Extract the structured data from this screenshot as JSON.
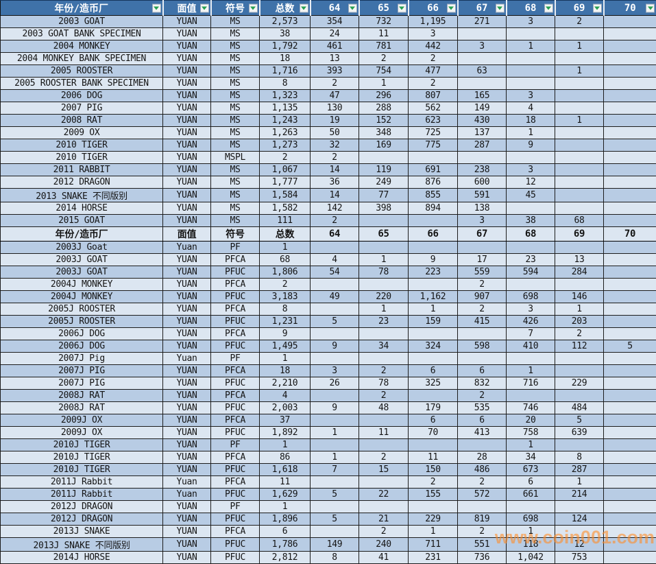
{
  "table": {
    "columns": [
      "年份/造币厂",
      "面值",
      "符号",
      "总数",
      "64",
      "65",
      "66",
      "67",
      "68",
      "69",
      "70"
    ],
    "rows": [
      {
        "t": "d",
        "c": [
          "2003 GOAT",
          "YUAN",
          "MS",
          "2,573",
          "354",
          "732",
          "1,195",
          "271",
          "3",
          "2",
          ""
        ]
      },
      {
        "t": "d",
        "c": [
          "2003 GOAT BANK SPECIMEN",
          "YUAN",
          "MS",
          "38",
          "24",
          "11",
          "3",
          "",
          "",
          "",
          ""
        ]
      },
      {
        "t": "d",
        "c": [
          "2004 MONKEY",
          "YUAN",
          "MS",
          "1,792",
          "461",
          "781",
          "442",
          "3",
          "1",
          "1",
          ""
        ]
      },
      {
        "t": "d",
        "c": [
          "2004 MONKEY BANK SPECIMEN",
          "YUAN",
          "MS",
          "18",
          "13",
          "2",
          "2",
          "",
          "",
          "",
          ""
        ]
      },
      {
        "t": "d",
        "c": [
          "2005 ROOSTER",
          "YUAN",
          "MS",
          "1,716",
          "393",
          "754",
          "477",
          "63",
          "",
          "1",
          ""
        ]
      },
      {
        "t": "d",
        "c": [
          "2005 ROOSTER BANK SPECIMEN",
          "YUAN",
          "MS",
          "8",
          "2",
          "1",
          "2",
          "",
          "",
          "",
          ""
        ]
      },
      {
        "t": "d",
        "c": [
          "2006 DOG",
          "YUAN",
          "MS",
          "1,323",
          "47",
          "296",
          "807",
          "165",
          "3",
          "",
          ""
        ]
      },
      {
        "t": "d",
        "c": [
          "2007 PIG",
          "YUAN",
          "MS",
          "1,135",
          "130",
          "288",
          "562",
          "149",
          "4",
          "",
          ""
        ]
      },
      {
        "t": "d",
        "c": [
          "2008 RAT",
          "YUAN",
          "MS",
          "1,243",
          "19",
          "152",
          "623",
          "430",
          "18",
          "1",
          ""
        ]
      },
      {
        "t": "d",
        "c": [
          "2009 OX",
          "YUAN",
          "MS",
          "1,263",
          "50",
          "348",
          "725",
          "137",
          "1",
          "",
          ""
        ]
      },
      {
        "t": "d",
        "c": [
          "2010 TIGER",
          "YUAN",
          "MS",
          "1,273",
          "32",
          "169",
          "775",
          "287",
          "9",
          "",
          ""
        ]
      },
      {
        "t": "d",
        "c": [
          "2010 TIGER",
          "YUAN",
          "MSPL",
          "2",
          "2",
          "",
          "",
          "",
          "",
          "",
          ""
        ]
      },
      {
        "t": "d",
        "c": [
          "2011 RABBIT",
          "YUAN",
          "MS",
          "1,067",
          "14",
          "119",
          "691",
          "238",
          "3",
          "",
          ""
        ]
      },
      {
        "t": "d",
        "c": [
          "2012 DRAGON",
          "YUAN",
          "MS",
          "1,777",
          "36",
          "249",
          "876",
          "600",
          "12",
          "",
          ""
        ]
      },
      {
        "t": "d",
        "c": [
          "2013 SNAKE 不同版别",
          "YUAN",
          "MS",
          "1,584",
          "14",
          "77",
          "855",
          "591",
          "45",
          "",
          ""
        ]
      },
      {
        "t": "d",
        "c": [
          "2014 HORSE",
          "YUAN",
          "MS",
          "1,582",
          "142",
          "398",
          "894",
          "138",
          "",
          "",
          ""
        ]
      },
      {
        "t": "d",
        "c": [
          "2015 GOAT",
          "YUAN",
          "MS",
          "111",
          "2",
          "",
          "",
          "3",
          "38",
          "68",
          ""
        ]
      },
      {
        "t": "h",
        "c": [
          "年份/造币厂",
          "面值",
          "符号",
          "总数",
          "64",
          "65",
          "66",
          "67",
          "68",
          "69",
          "70"
        ]
      },
      {
        "t": "d",
        "c": [
          "2003J Goat",
          "Yuan",
          "PF",
          "1",
          "",
          "",
          "",
          "",
          "",
          "",
          ""
        ]
      },
      {
        "t": "d",
        "c": [
          "2003J GOAT",
          "YUAN",
          "PFCA",
          "68",
          "4",
          "1",
          "9",
          "17",
          "23",
          "13",
          ""
        ]
      },
      {
        "t": "d",
        "c": [
          "2003J GOAT",
          "YUAN",
          "PFUC",
          "1,806",
          "54",
          "78",
          "223",
          "559",
          "594",
          "284",
          ""
        ]
      },
      {
        "t": "d",
        "c": [
          "2004J MONKEY",
          "YUAN",
          "PFCA",
          "2",
          "",
          "",
          "",
          "2",
          "",
          "",
          ""
        ]
      },
      {
        "t": "d",
        "c": [
          "2004J MONKEY",
          "YUAN",
          "PFUC",
          "3,183",
          "49",
          "220",
          "1,162",
          "907",
          "698",
          "146",
          ""
        ]
      },
      {
        "t": "d",
        "c": [
          "2005J ROOSTER",
          "YUAN",
          "PFCA",
          "8",
          "",
          "1",
          "1",
          "2",
          "3",
          "1",
          ""
        ]
      },
      {
        "t": "d",
        "c": [
          "2005J ROOSTER",
          "YUAN",
          "PFUC",
          "1,231",
          "5",
          "23",
          "159",
          "415",
          "426",
          "203",
          ""
        ]
      },
      {
        "t": "d",
        "c": [
          "2006J DOG",
          "YUAN",
          "PFCA",
          "9",
          "",
          "",
          "",
          "",
          "7",
          "2",
          ""
        ]
      },
      {
        "t": "d",
        "c": [
          "2006J DOG",
          "YUAN",
          "PFUC",
          "1,495",
          "9",
          "34",
          "324",
          "598",
          "410",
          "112",
          "5"
        ]
      },
      {
        "t": "d",
        "c": [
          "2007J Pig",
          "Yuan",
          "PF",
          "1",
          "",
          "",
          "",
          "",
          "",
          "",
          ""
        ]
      },
      {
        "t": "d",
        "c": [
          "2007J PIG",
          "YUAN",
          "PFCA",
          "18",
          "3",
          "2",
          "6",
          "6",
          "1",
          "",
          ""
        ]
      },
      {
        "t": "d",
        "c": [
          "2007J PIG",
          "YUAN",
          "PFUC",
          "2,210",
          "26",
          "78",
          "325",
          "832",
          "716",
          "229",
          ""
        ]
      },
      {
        "t": "d",
        "c": [
          "2008J RAT",
          "YUAN",
          "PFCA",
          "4",
          "",
          "2",
          "",
          "2",
          "",
          "",
          ""
        ]
      },
      {
        "t": "d",
        "c": [
          "2008J RAT",
          "YUAN",
          "PFUC",
          "2,003",
          "9",
          "48",
          "179",
          "535",
          "746",
          "484",
          ""
        ]
      },
      {
        "t": "d",
        "c": [
          "2009J OX",
          "YUAN",
          "PFCA",
          "37",
          "",
          "",
          "6",
          "6",
          "20",
          "5",
          ""
        ]
      },
      {
        "t": "d",
        "c": [
          "2009J OX",
          "YUAN",
          "PFUC",
          "1,892",
          "1",
          "11",
          "70",
          "413",
          "758",
          "639",
          ""
        ]
      },
      {
        "t": "d",
        "c": [
          "2010J TIGER",
          "YUAN",
          "PF",
          "1",
          "",
          "",
          "",
          "",
          "1",
          "",
          ""
        ]
      },
      {
        "t": "d",
        "c": [
          "2010J TIGER",
          "YUAN",
          "PFCA",
          "86",
          "1",
          "2",
          "11",
          "28",
          "34",
          "8",
          ""
        ]
      },
      {
        "t": "d",
        "c": [
          "2010J TIGER",
          "YUAN",
          "PFUC",
          "1,618",
          "7",
          "15",
          "150",
          "486",
          "673",
          "287",
          ""
        ]
      },
      {
        "t": "d",
        "c": [
          "2011J Rabbit",
          "Yuan",
          "PFCA",
          "11",
          "",
          "",
          "2",
          "2",
          "6",
          "1",
          ""
        ]
      },
      {
        "t": "d",
        "c": [
          "2011J Rabbit",
          "Yuan",
          "PFUC",
          "1,629",
          "5",
          "22",
          "155",
          "572",
          "661",
          "214",
          ""
        ]
      },
      {
        "t": "d",
        "c": [
          "2012J DRAGON",
          "YUAN",
          "PF",
          "1",
          "",
          "",
          "",
          "",
          "",
          "",
          ""
        ]
      },
      {
        "t": "d",
        "c": [
          "2012J DRAGON",
          "YUAN",
          "PFUC",
          "1,896",
          "5",
          "21",
          "229",
          "819",
          "698",
          "124",
          ""
        ]
      },
      {
        "t": "d",
        "c": [
          "2013J SNAKE",
          "YUAN",
          "PFCA",
          "6",
          "",
          "2",
          "1",
          "2",
          "1",
          "",
          ""
        ]
      },
      {
        "t": "d",
        "c": [
          "2013J SNAKE 不同版别",
          "YUAN",
          "PFUC",
          "1,786",
          "149",
          "240",
          "711",
          "551",
          "118",
          "12",
          ""
        ]
      },
      {
        "t": "d",
        "c": [
          "2014J HORSE",
          "YUAN",
          "PFUC",
          "2,812",
          "8",
          "41",
          "231",
          "736",
          "1,042",
          "753",
          ""
        ]
      }
    ]
  },
  "watermark": {
    "text": "www.coin001.com",
    "color": "#ff8e2a"
  },
  "colors": {
    "header_bg": "#3f72a9",
    "header_text": "#ffffff",
    "row_dark": "#b8cce4",
    "row_light": "#dce6f1",
    "grid_line": "#1c1c1c",
    "filter_arrow_green": "#27a053",
    "watermark_orange": "#ff8e2a"
  }
}
